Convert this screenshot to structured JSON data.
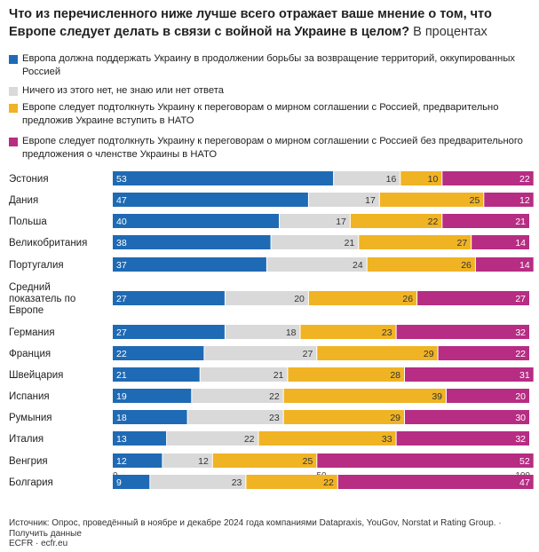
{
  "title": {
    "main": "Что из перечисленного ниже лучше всего отражает ваше мнение о том, что Европе следует делать в связи с войной на Украине в целом?",
    "suffix": "В процентах"
  },
  "colors": {
    "blue": "#1f6ab4",
    "gray": "#d9d9d9",
    "yellow": "#f0b324",
    "magenta": "#b62d83"
  },
  "legend": [
    {
      "label": "Европа должна поддержать Украину в продолжении борьбы за возвращение территорий, оккупированных Россией",
      "color": "#1f6ab4"
    },
    {
      "label": "Ничего из этого нет, не знаю или нет ответа",
      "color": "#d9d9d9"
    },
    {
      "label": "Европе следует подтолкнуть Украину к переговорам о мирном соглашении с Россией, предварительно предложив Украине вступить в НАТО",
      "color": "#f0b324"
    },
    {
      "label": "Европе следует подтолкнуть Украину к переговорам о мирном соглашении с Россией без предварительного предложения о членстве Украины в НАТО",
      "color": "#b62d83"
    }
  ],
  "chart_data": {
    "type": "bar",
    "orientation": "horizontal",
    "stacked": true,
    "categories": [
      "Эстония",
      "Дания",
      "Польша",
      "Великобритания",
      "Португалия",
      "Средний показатель по Европе",
      "Германия",
      "Франция",
      "Швейцария",
      "Испания",
      "Румыния",
      "Италия",
      "Венгрия",
      "Болгария"
    ],
    "series": [
      {
        "name": "Европа должна поддержать Украину в продолжении борьбы за возвращение территорий, оккупированных Россией",
        "color": "#1f6ab4",
        "values": [
          53,
          47,
          40,
          38,
          37,
          27,
          27,
          22,
          21,
          19,
          18,
          13,
          12,
          9
        ]
      },
      {
        "name": "Ничего из этого нет, не знаю или нет ответа",
        "color": "#d9d9d9",
        "values": [
          16,
          17,
          17,
          21,
          24,
          20,
          18,
          27,
          21,
          22,
          23,
          22,
          12,
          23
        ]
      },
      {
        "name": "Европе следует подтолкнуть Украину к переговорам о мирном соглашении с Россией, предварительно предложив Украине вступить в НАТО",
        "color": "#f0b324",
        "values": [
          10,
          25,
          22,
          27,
          26,
          26,
          23,
          29,
          28,
          39,
          29,
          33,
          25,
          22
        ]
      },
      {
        "name": "Европе следует подтолкнуть Украину к переговорам о мирном соглашении с Россией без предварительного предложения о членстве Украины в НАТО",
        "color": "#b62d83",
        "values": [
          22,
          12,
          21,
          14,
          14,
          27,
          32,
          22,
          31,
          20,
          30,
          32,
          52,
          47
        ]
      }
    ],
    "xlim": [
      0,
      100
    ],
    "xticks": [
      0,
      50,
      100
    ]
  },
  "footer": {
    "source": "Источник: Опрос, проведённый в ноябре и декабре 2024 года компаниями Datapraxis, YouGov, Norstat и Rating Group. · Получить данные",
    "credit": "ECFR · ecfr.eu"
  }
}
